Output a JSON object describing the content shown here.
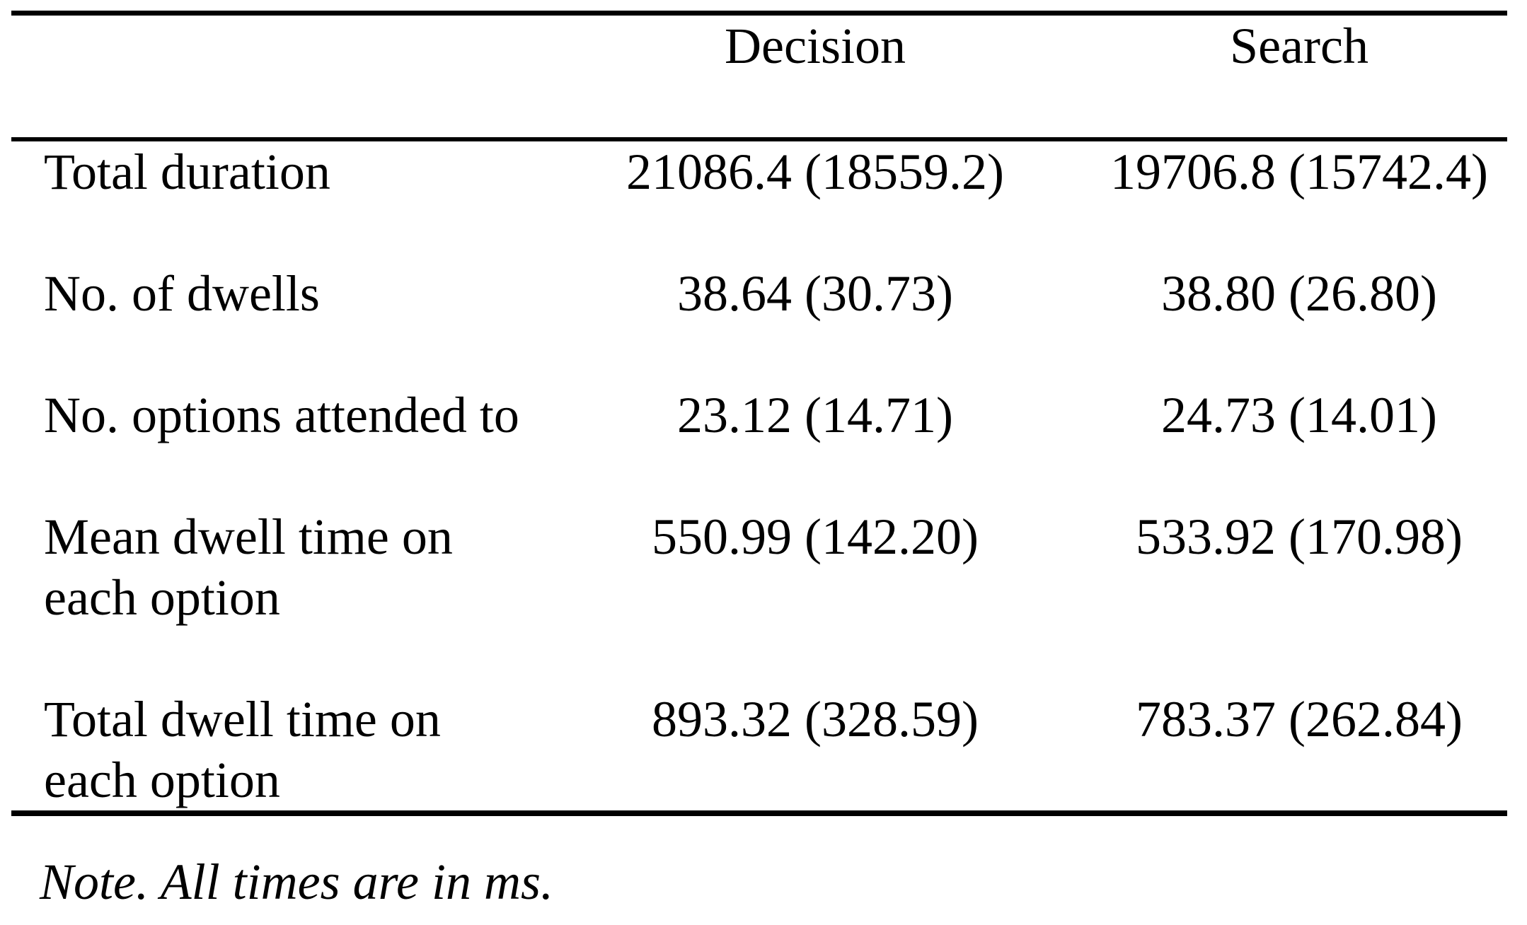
{
  "table": {
    "header": {
      "decision": "Decision",
      "search": "Search"
    },
    "rows": [
      {
        "label": "Total duration",
        "decision": "21086.4 (18559.2)",
        "search": "19706.8 (15742.4)"
      },
      {
        "label": "No. of dwells",
        "decision": "38.64 (30.73)",
        "search": "38.80 (26.80)"
      },
      {
        "label": "No. options attended to",
        "decision": "23.12 (14.71)",
        "search": "24.73 (14.01)"
      },
      {
        "label": "Mean dwell time on each option",
        "decision": "550.99 (142.20)",
        "search": "533.92 (170.98)"
      },
      {
        "label": "Total dwell time on each option",
        "decision": "893.32 (328.59)",
        "search": "783.37 (262.84)"
      }
    ],
    "note": "Note. All times are in ms.",
    "value_format": "mean (sd)",
    "text_color": "#000000",
    "background_color": "#ffffff"
  }
}
